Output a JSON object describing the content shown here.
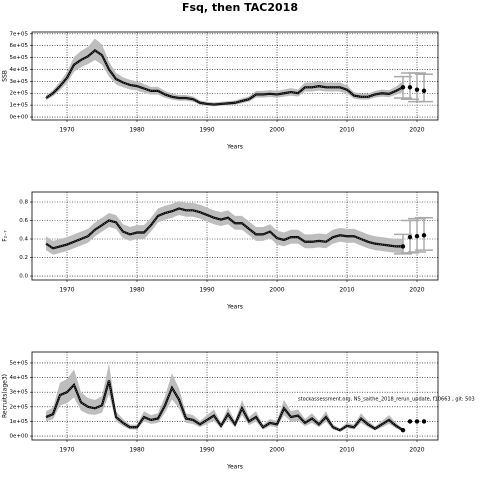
{
  "title": "Fsq, then TAC2018",
  "chart_data": [
    {
      "type": "band-line",
      "ylabel": "SSB",
      "xlabel": "Years",
      "x": [
        1967,
        1968,
        1969,
        1970,
        1971,
        1972,
        1973,
        1974,
        1975,
        1976,
        1977,
        1978,
        1979,
        1980,
        1981,
        1982,
        1983,
        1984,
        1985,
        1986,
        1987,
        1988,
        1989,
        1990,
        1991,
        1992,
        1993,
        1994,
        1995,
        1996,
        1997,
        1998,
        1999,
        2000,
        2001,
        2002,
        2003,
        2004,
        2005,
        2006,
        2007,
        2008,
        2009,
        2010,
        2011,
        2012,
        2013,
        2014,
        2015,
        2016,
        2017,
        2018
      ],
      "values": [
        160000,
        200000,
        260000,
        330000,
        440000,
        480000,
        510000,
        560000,
        520000,
        400000,
        320000,
        290000,
        270000,
        260000,
        240000,
        220000,
        220000,
        190000,
        170000,
        160000,
        160000,
        150000,
        120000,
        110000,
        105000,
        110000,
        115000,
        120000,
        135000,
        150000,
        190000,
        190000,
        195000,
        190000,
        200000,
        210000,
        200000,
        250000,
        250000,
        260000,
        250000,
        250000,
        250000,
        230000,
        180000,
        170000,
        170000,
        190000,
        200000,
        195000,
        220000,
        250000
      ],
      "lower": [
        140000,
        175000,
        225000,
        285000,
        380000,
        420000,
        445000,
        480000,
        440000,
        340000,
        275000,
        250000,
        232000,
        222000,
        205000,
        188000,
        188000,
        162000,
        145000,
        137000,
        137000,
        128000,
        103000,
        95000,
        91000,
        95000,
        99000,
        103000,
        116000,
        129000,
        163000,
        163000,
        168000,
        163000,
        172000,
        180000,
        172000,
        215000,
        215000,
        223000,
        215000,
        215000,
        215000,
        198000,
        155000,
        146000,
        146000,
        163000,
        172000,
        167000,
        187000,
        208000
      ],
      "upper": [
        182000,
        228000,
        297000,
        378000,
        505000,
        555000,
        590000,
        660000,
        610000,
        465000,
        370000,
        335000,
        312000,
        300000,
        277000,
        254000,
        254000,
        220000,
        196000,
        185000,
        185000,
        174000,
        139000,
        128000,
        122000,
        128000,
        133000,
        139000,
        157000,
        174000,
        220000,
        220000,
        226000,
        220000,
        232000,
        243000,
        232000,
        290000,
        290000,
        301000,
        290000,
        290000,
        290000,
        266000,
        208000,
        197000,
        197000,
        220000,
        232000,
        226000,
        256000,
        300000
      ],
      "projection": {
        "x": [
          2018,
          2019,
          2020,
          2021
        ],
        "values": [
          250000,
          250000,
          230000,
          220000
        ],
        "lower": [
          160000,
          150000,
          130000,
          130000
        ],
        "upper": [
          340000,
          370000,
          370000,
          360000
        ]
      },
      "color": "#000000",
      "band_color": "#bdbdbd",
      "xlim": [
        1965,
        2023
      ],
      "xticks": [
        1970,
        1980,
        1990,
        2000,
        2010,
        2020
      ],
      "ylim": [
        -25000,
        715000
      ],
      "yticks": [
        {
          "value": 0,
          "label": "0e+00"
        },
        {
          "value": 100000,
          "label": "1e+05"
        },
        {
          "value": 200000,
          "label": "2e+05"
        },
        {
          "value": 300000,
          "label": "3e+05"
        },
        {
          "value": 400000,
          "label": "4e+05"
        },
        {
          "value": 500000,
          "label": "5e+05"
        },
        {
          "value": 600000,
          "label": "6e+05"
        },
        {
          "value": 700000,
          "label": "7e+05"
        }
      ],
      "grid": true
    },
    {
      "type": "band-line",
      "ylabel": "F₂₋₇",
      "xlabel": "Years",
      "x": [
        1967,
        1968,
        1969,
        1970,
        1971,
        1972,
        1973,
        1974,
        1975,
        1976,
        1977,
        1978,
        1979,
        1980,
        1981,
        1982,
        1983,
        1984,
        1985,
        1986,
        1987,
        1988,
        1989,
        1990,
        1991,
        1992,
        1993,
        1994,
        1995,
        1996,
        1997,
        1998,
        1999,
        2000,
        2001,
        2002,
        2003,
        2004,
        2005,
        2006,
        2007,
        2008,
        2009,
        2010,
        2011,
        2012,
        2013,
        2014,
        2015,
        2016,
        2017,
        2018
      ],
      "values": [
        0.35,
        0.3,
        0.32,
        0.34,
        0.37,
        0.4,
        0.43,
        0.5,
        0.55,
        0.6,
        0.58,
        0.48,
        0.45,
        0.47,
        0.47,
        0.55,
        0.65,
        0.68,
        0.7,
        0.73,
        0.71,
        0.71,
        0.69,
        0.66,
        0.63,
        0.61,
        0.63,
        0.57,
        0.57,
        0.51,
        0.45,
        0.45,
        0.48,
        0.41,
        0.39,
        0.42,
        0.42,
        0.37,
        0.37,
        0.38,
        0.37,
        0.42,
        0.44,
        0.43,
        0.43,
        0.4,
        0.37,
        0.35,
        0.34,
        0.33,
        0.32,
        0.32
      ],
      "lower": [
        0.28,
        0.23,
        0.25,
        0.27,
        0.3,
        0.33,
        0.36,
        0.43,
        0.48,
        0.53,
        0.51,
        0.41,
        0.38,
        0.4,
        0.4,
        0.48,
        0.58,
        0.61,
        0.63,
        0.66,
        0.64,
        0.64,
        0.62,
        0.59,
        0.56,
        0.54,
        0.56,
        0.5,
        0.5,
        0.44,
        0.38,
        0.38,
        0.41,
        0.34,
        0.32,
        0.35,
        0.35,
        0.3,
        0.3,
        0.31,
        0.3,
        0.35,
        0.37,
        0.36,
        0.36,
        0.33,
        0.3,
        0.28,
        0.27,
        0.26,
        0.25,
        0.25
      ],
      "upper": [
        0.43,
        0.38,
        0.4,
        0.42,
        0.45,
        0.48,
        0.51,
        0.58,
        0.63,
        0.68,
        0.66,
        0.56,
        0.53,
        0.55,
        0.55,
        0.63,
        0.73,
        0.76,
        0.78,
        0.81,
        0.79,
        0.79,
        0.77,
        0.74,
        0.71,
        0.69,
        0.71,
        0.65,
        0.65,
        0.59,
        0.53,
        0.53,
        0.56,
        0.49,
        0.47,
        0.5,
        0.5,
        0.45,
        0.45,
        0.46,
        0.45,
        0.5,
        0.52,
        0.51,
        0.51,
        0.48,
        0.45,
        0.43,
        0.42,
        0.41,
        0.4,
        0.4
      ],
      "projection": {
        "x": [
          2018,
          2019,
          2020,
          2021
        ],
        "values": [
          0.32,
          0.42,
          0.43,
          0.44
        ],
        "lower": [
          0.24,
          0.25,
          0.26,
          0.28
        ],
        "upper": [
          0.45,
          0.6,
          0.62,
          0.63
        ]
      },
      "color": "#000000",
      "band_color": "#bdbdbd",
      "xlim": [
        1965,
        2023
      ],
      "xticks": [
        1970,
        1980,
        1990,
        2000,
        2010,
        2020
      ],
      "ylim": [
        -0.043,
        0.908
      ],
      "yticks": [
        {
          "value": 0,
          "label": "0.0"
        },
        {
          "value": 0.2,
          "label": "0.2"
        },
        {
          "value": 0.4,
          "label": "0.4"
        },
        {
          "value": 0.6,
          "label": "0.6"
        },
        {
          "value": 0.8,
          "label": "0.8"
        }
      ],
      "grid": true
    },
    {
      "type": "band-line",
      "ylabel": "Recruits(age3)",
      "xlabel": "Years",
      "annotation": "stockassessment.org, NS_saithe_2018_rerun_update, f10663 , git: 503",
      "x": [
        1967,
        1968,
        1969,
        1970,
        1971,
        1972,
        1973,
        1974,
        1975,
        1976,
        1977,
        1978,
        1979,
        1980,
        1981,
        1982,
        1983,
        1984,
        1985,
        1986,
        1987,
        1988,
        1989,
        1990,
        1991,
        1992,
        1993,
        1994,
        1995,
        1996,
        1997,
        1998,
        1999,
        2000,
        2001,
        2002,
        2003,
        2004,
        2005,
        2006,
        2007,
        2008,
        2009,
        2010,
        2011,
        2012,
        2013,
        2014,
        2015,
        2016,
        2017,
        2018
      ],
      "values": [
        130000,
        150000,
        280000,
        300000,
        350000,
        230000,
        200000,
        190000,
        210000,
        380000,
        130000,
        90000,
        60000,
        60000,
        130000,
        110000,
        120000,
        210000,
        330000,
        250000,
        120000,
        110000,
        80000,
        110000,
        140000,
        70000,
        150000,
        80000,
        190000,
        100000,
        130000,
        60000,
        90000,
        80000,
        190000,
        130000,
        140000,
        90000,
        120000,
        80000,
        130000,
        60000,
        40000,
        70000,
        60000,
        120000,
        80000,
        50000,
        80000,
        110000,
        70000,
        40000
      ],
      "lower": [
        100000,
        115000,
        210000,
        225000,
        265000,
        175000,
        150000,
        145000,
        160000,
        285000,
        100000,
        68000,
        45000,
        45000,
        100000,
        83000,
        90000,
        160000,
        250000,
        190000,
        90000,
        83000,
        60000,
        83000,
        105000,
        53000,
        113000,
        60000,
        143000,
        75000,
        98000,
        45000,
        68000,
        60000,
        143000,
        98000,
        105000,
        68000,
        90000,
        60000,
        98000,
        45000,
        30000,
        53000,
        45000,
        90000,
        60000,
        38000,
        60000,
        83000,
        53000,
        30000
      ],
      "upper": [
        170000,
        195000,
        365000,
        390000,
        455000,
        300000,
        260000,
        247000,
        273000,
        495000,
        170000,
        117000,
        78000,
        78000,
        170000,
        143000,
        156000,
        273000,
        430000,
        325000,
        156000,
        143000,
        104000,
        143000,
        182000,
        91000,
        195000,
        104000,
        247000,
        130000,
        170000,
        78000,
        117000,
        104000,
        247000,
        170000,
        182000,
        117000,
        156000,
        104000,
        170000,
        78000,
        52000,
        91000,
        78000,
        156000,
        104000,
        65000,
        104000,
        143000,
        91000,
        52000
      ],
      "projection": {
        "x": [
          2018,
          2019,
          2020,
          2021
        ],
        "values": [
          40000,
          100000,
          100000,
          100000
        ]
      },
      "color": "#000000",
      "band_color": "#bdbdbd",
      "xlim": [
        1965,
        2023
      ],
      "xticks": [
        1970,
        1980,
        1990,
        2000,
        2010,
        2020
      ],
      "ylim": [
        -27000,
        575000
      ],
      "yticks": [
        {
          "value": 0,
          "label": "0e+00"
        },
        {
          "value": 100000,
          "label": "1e+05"
        },
        {
          "value": 200000,
          "label": "2e+05"
        },
        {
          "value": 300000,
          "label": "3e+05"
        },
        {
          "value": 400000,
          "label": "4e+05"
        },
        {
          "value": 500000,
          "label": "5e+05"
        }
      ],
      "grid": true
    }
  ]
}
